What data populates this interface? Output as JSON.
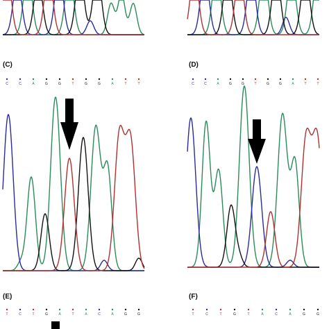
{
  "panels": [
    {
      "label": "(C)",
      "bases": [
        "C",
        "C",
        "A",
        "G",
        "G",
        "T",
        "G",
        "G",
        "A",
        "T",
        "T"
      ]
    },
    {
      "label": "(D)",
      "bases": [
        "C",
        "C",
        "A",
        "G",
        "G",
        "T",
        "G",
        "G",
        "A",
        "T",
        "T"
      ]
    },
    {
      "label": "(E)",
      "bases": [
        "T",
        "C",
        "T",
        "G",
        "A",
        "T",
        "A",
        "C",
        "A",
        "G",
        "G"
      ]
    },
    {
      "label": "(F)",
      "bases": [
        "T",
        "C",
        "T",
        "G",
        "T",
        "A",
        "C",
        "A",
        "G",
        "G"
      ]
    }
  ]
}
